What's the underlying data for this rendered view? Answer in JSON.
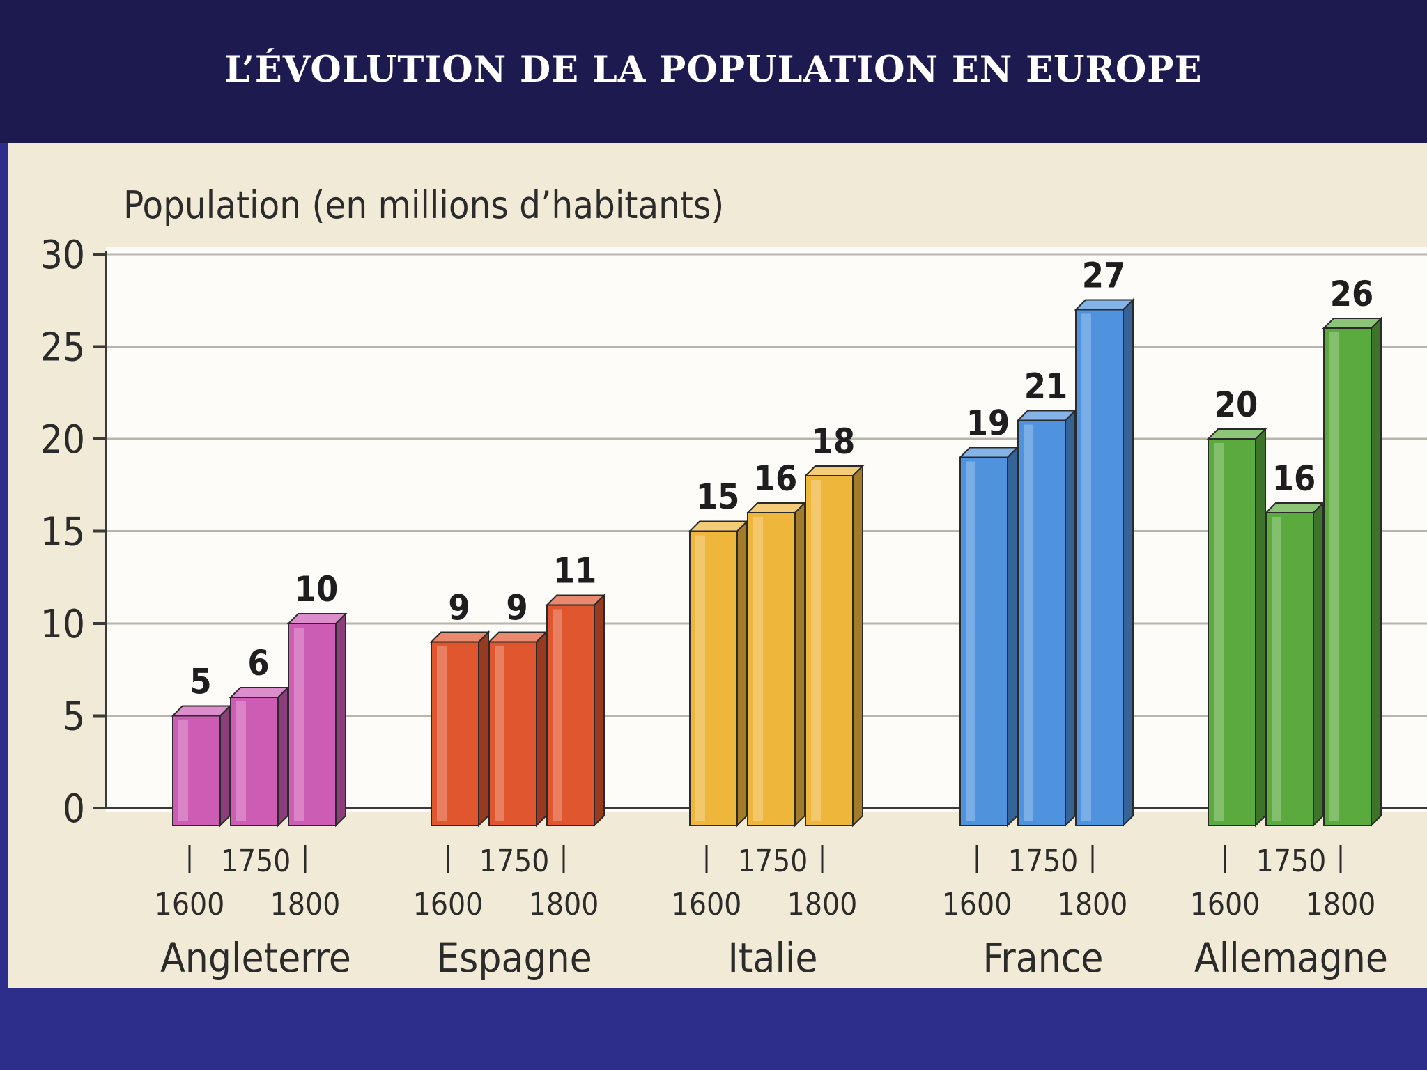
{
  "slide": {
    "title": "L’ÉVOLUTION DE LA POPULATION EN EUROPE"
  },
  "colors": {
    "top_band": "#1d1a4f",
    "bottom_band": "#2d2d8c",
    "panel": "#f1ead6",
    "plot_area": "#fdfcf8",
    "Angleterre": "#cd5cb4",
    "Espagne": "#e0562e",
    "Italie": "#efb63c",
    "France": "#4f93de",
    "Allemagne": "#5aaa3e"
  },
  "chart_data": {
    "type": "bar",
    "title": "Population (en millions d’habitants)",
    "ylabel": "",
    "xlabel": "",
    "ylim": [
      0,
      30
    ],
    "yticks": [
      0,
      5,
      10,
      15,
      20,
      25,
      30
    ],
    "grid": true,
    "bar_style": "3d",
    "categories": [
      "1600",
      "1750",
      "1800"
    ],
    "groups": [
      {
        "name": "Angleterre",
        "values": [
          5,
          6,
          10
        ]
      },
      {
        "name": "Espagne",
        "values": [
          9,
          9,
          11
        ]
      },
      {
        "name": "Italie",
        "values": [
          15,
          16,
          18
        ]
      },
      {
        "name": "France",
        "values": [
          19,
          21,
          27
        ]
      },
      {
        "name": "Allemagne",
        "values": [
          20,
          16,
          26
        ]
      }
    ]
  }
}
